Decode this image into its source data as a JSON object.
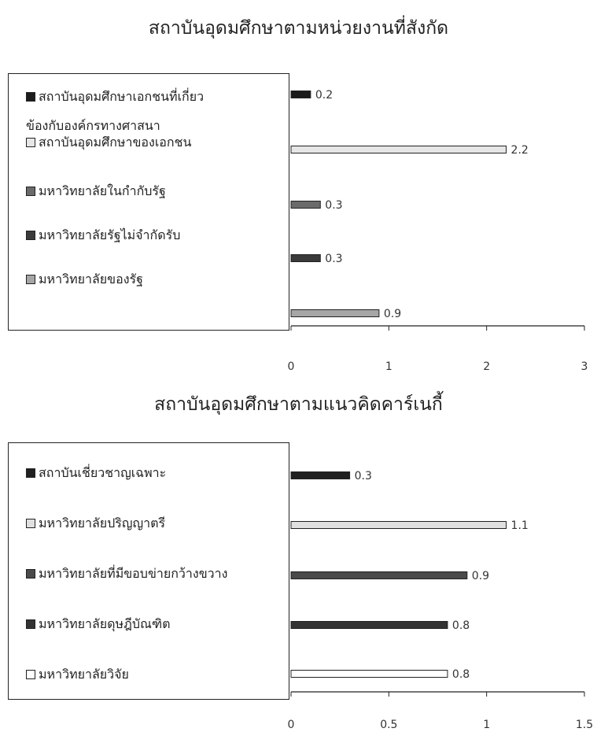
{
  "chart_data": [
    {
      "type": "bar",
      "orientation": "horizontal",
      "title": "สถาบันอุดมศึกษาตามหน่วยงานที่สังกัด",
      "categories": [
        "สถาบันอุดมศึกษาเอกชนที่เกี่ยวข้องกับองค์กรทางศาสนา",
        "สถาบันอุดมศึกษาของเอกชน",
        "มหาวิทยาลัยในกำกับรัฐ",
        "มหาวิทยาลัยรัฐไม่จำกัดรับ",
        "มหาวิทยาลัยของรัฐ"
      ],
      "legend": [
        [
          "สถาบันอุดมศึกษาเอกชนที่เกี่ยว",
          "ข้องกับองค์กรทางศาสนา"
        ],
        [
          "สถาบันอุดมศึกษาของเอกชน"
        ],
        [
          "มหาวิทยาลัยในกำกับรัฐ"
        ],
        [
          "มหาวิทยาลัยรัฐไม่จำกัดรับ"
        ],
        [
          "มหาวิทยาลัยของรัฐ"
        ]
      ],
      "values": [
        0.2,
        2.2,
        0.3,
        0.3,
        0.9
      ],
      "value_labels": [
        "0.2",
        "2.2",
        "0.3",
        "0.3",
        "0.9"
      ],
      "colors": [
        "#1c1c1c",
        "#e6e6e6",
        "#6a6a6a",
        "#3a3a3a",
        "#a6a6a6"
      ],
      "xlim": [
        0,
        3
      ],
      "ticks": [
        0,
        1,
        2,
        3
      ],
      "tick_labels": [
        "0",
        "1",
        "2",
        "3"
      ],
      "xlabel": "",
      "ylabel": "",
      "grid": false,
      "legend_position": "left"
    },
    {
      "type": "bar",
      "orientation": "horizontal",
      "title": "สถาบันอุดมศึกษาตามแนวคิดคาร์เนกี้",
      "categories": [
        "สถาบันเชี่ยวชาญเฉพาะ",
        "มหาวิทยาลัยปริญญาตรี",
        "มหาวิทยาลัยที่มีขอบข่ายกว้างขวาง",
        "มหาวิทยาลัยดุษฎีบัณฑิต",
        "มหาวิทยาลัยวิจัย"
      ],
      "legend": [
        [
          "สถาบันเชี่ยวชาญเฉพาะ"
        ],
        [
          "มหาวิทยาลัยปริญญาตรี"
        ],
        [
          "มหาวิทยาลัยที่มีขอบข่ายกว้างขวาง"
        ],
        [
          "มหาวิทยาลัยดุษฎีบัณฑิต"
        ],
        [
          "มหาวิทยาลัยวิจัย"
        ]
      ],
      "values": [
        0.3,
        1.1,
        0.9,
        0.8,
        0.8
      ],
      "value_labels": [
        "0.3",
        "1.1",
        "0.9",
        "0.8",
        "0.8"
      ],
      "colors": [
        "#202020",
        "#e0e0e0",
        "#4a4a4a",
        "#333333",
        "#ffffff"
      ],
      "xlim": [
        0,
        1.5
      ],
      "ticks": [
        0,
        0.5,
        1,
        1.5
      ],
      "tick_labels": [
        "0",
        "0.5",
        "1",
        "1.5"
      ],
      "xlabel": "",
      "ylabel": "",
      "grid": false,
      "legend_position": "left"
    }
  ]
}
